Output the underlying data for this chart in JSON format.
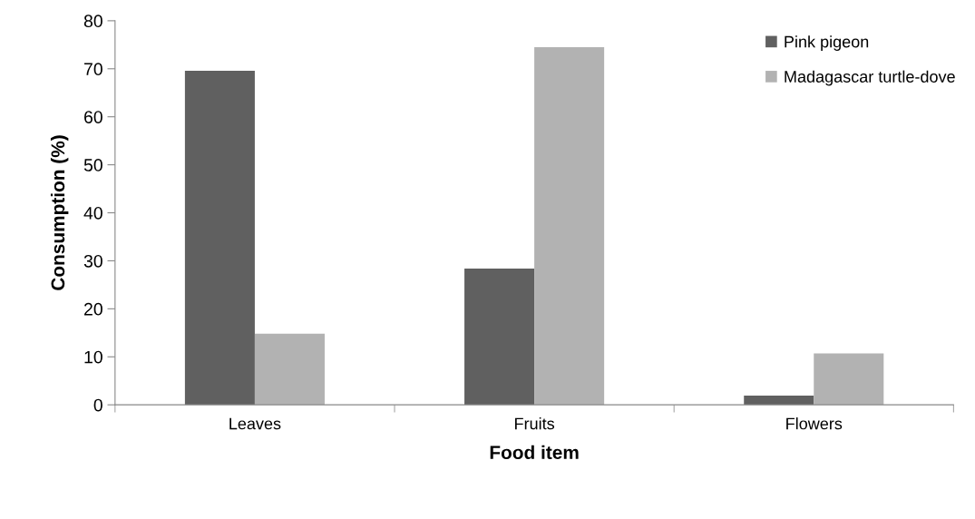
{
  "chart_data": {
    "type": "bar",
    "xlabel": "Food item",
    "ylabel": "Consumption (%)",
    "categories": [
      "Leaves",
      "Fruits",
      "Flowers"
    ],
    "series": [
      {
        "name": "Pink pigeon",
        "color": "#606060",
        "values": [
          69.6,
          28.4,
          1.9
        ]
      },
      {
        "name": "Madagascar turtle-dove",
        "color": "#b2b2b2",
        "values": [
          14.8,
          74.5,
          10.7
        ]
      }
    ],
    "ylim": [
      0,
      80
    ],
    "yticks": [
      0,
      10,
      20,
      30,
      40,
      50,
      60,
      70,
      80
    ],
    "grid": false,
    "legend": "top right"
  }
}
